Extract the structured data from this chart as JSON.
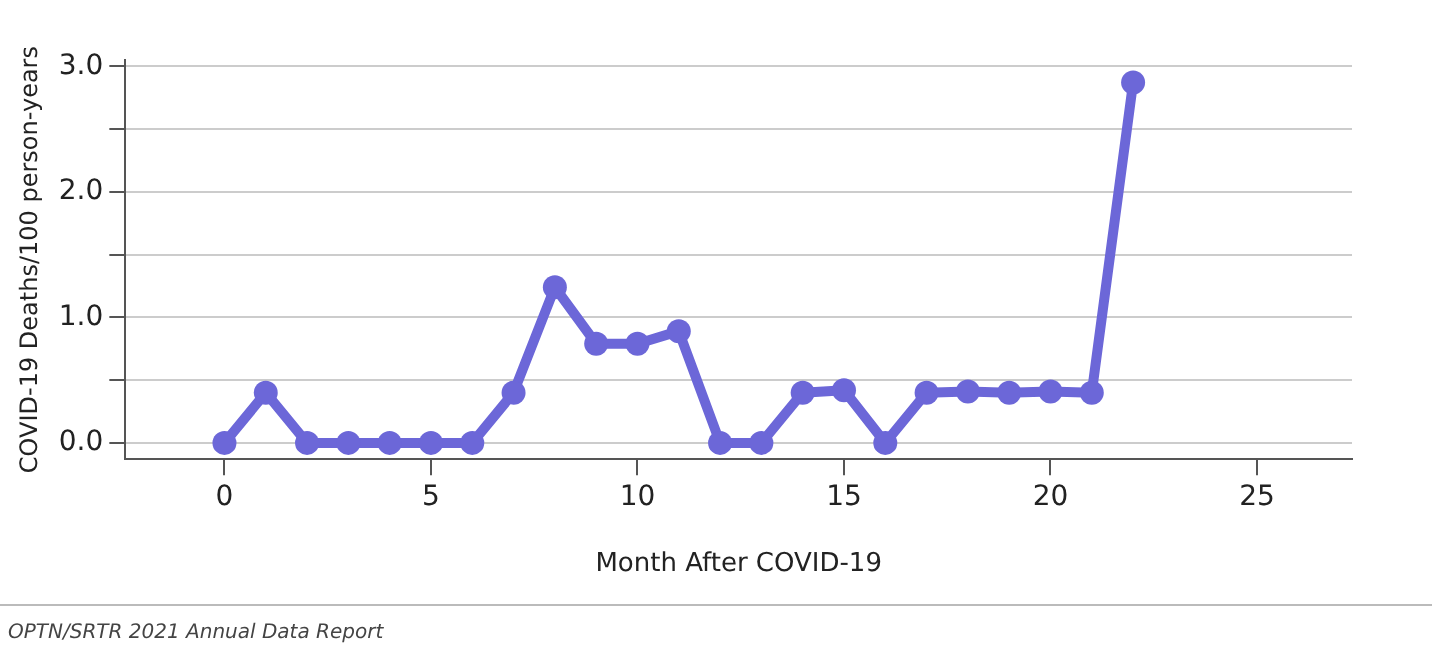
{
  "chart_data": {
    "type": "line",
    "xlabel": "Month After COVID-19",
    "ylabel": "COVID-19 Deaths/100 person-years",
    "annotations": [
      "OPTN/SRTR 2021 Annual Data Report"
    ],
    "x": [
      0,
      1,
      2,
      3,
      4,
      5,
      6,
      7,
      8,
      9,
      10,
      11,
      12,
      13,
      14,
      15,
      16,
      17,
      18,
      19,
      20,
      21,
      22
    ],
    "series": [
      {
        "color": "#6c67d8",
        "values": [
          0,
          0.4,
          0,
          0,
          0,
          0,
          0,
          0.4,
          1.24,
          0.79,
          0.79,
          0.89,
          0,
          0,
          0.4,
          0.42,
          0,
          0.4,
          0.41,
          0.4,
          0.41,
          0.4,
          2.87
        ]
      }
    ],
    "xlim": [
      -2.4,
      27.3
    ],
    "xticks": [
      0,
      5,
      10,
      15,
      20,
      25
    ],
    "ylim": [
      -0.13,
      3.05
    ],
    "yticks": [
      {
        "value": 0,
        "label": "0.0"
      },
      {
        "value": 0.5,
        "label": null
      },
      {
        "value": 1,
        "label": "1.0"
      },
      {
        "value": 1.5,
        "label": null
      },
      {
        "value": 2,
        "label": "2.0"
      },
      {
        "value": 2.5,
        "label": null
      },
      {
        "value": 3,
        "label": "3.0"
      }
    ],
    "grid": "y",
    "legend": false,
    "marker": "circle",
    "line_style": "solid"
  }
}
